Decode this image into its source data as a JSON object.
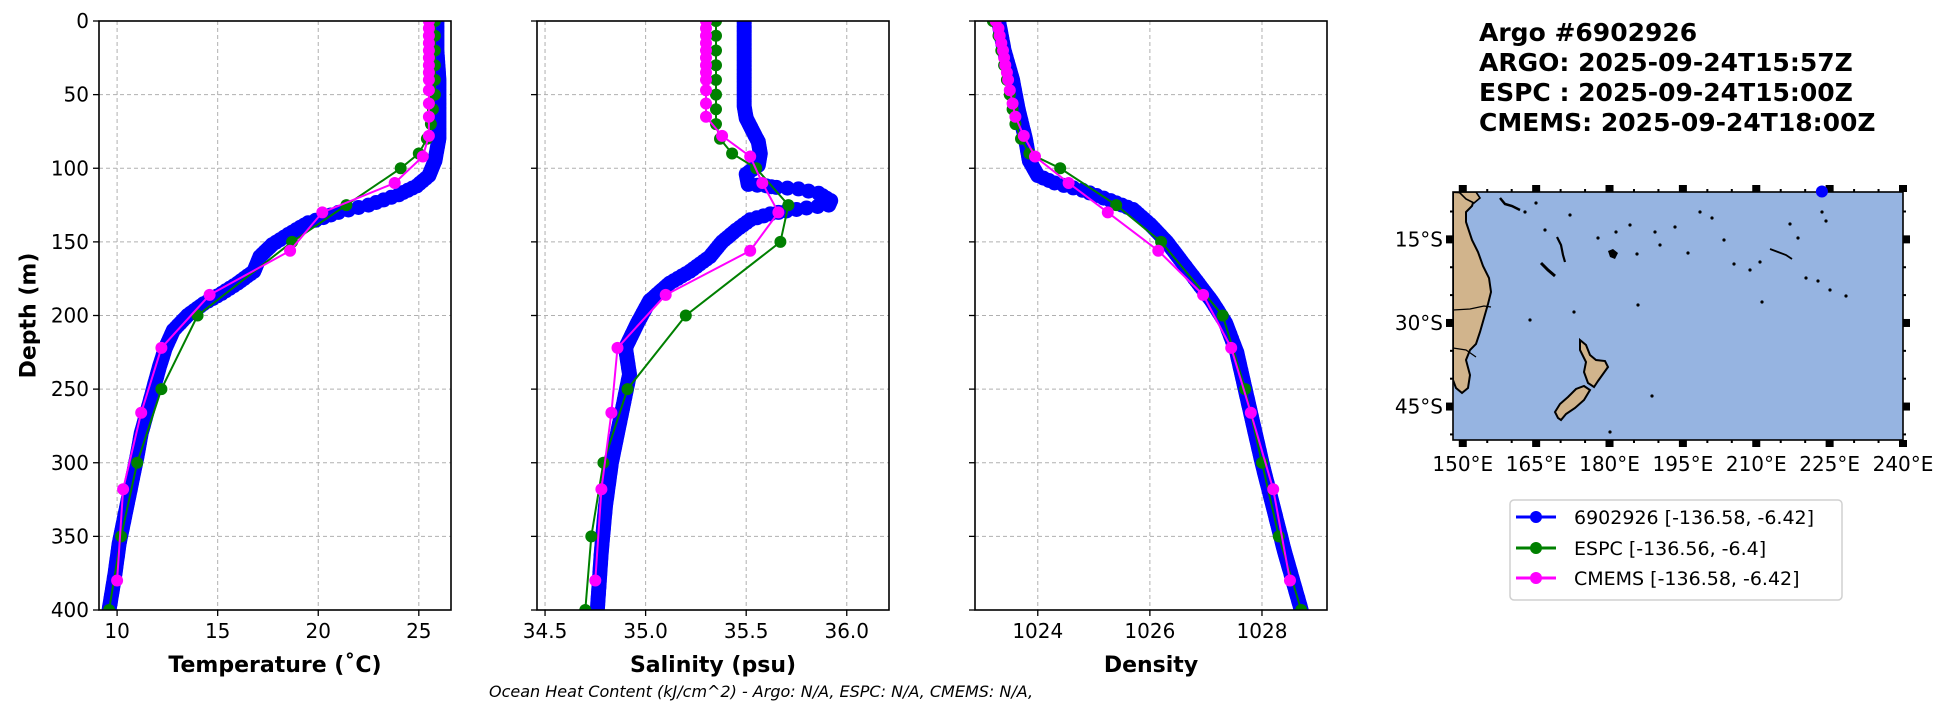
{
  "chart_data": [
    {
      "type": "line",
      "panel": "temperature",
      "xlabel": "Temperature (˚C)",
      "ylabel": "Depth (m)",
      "xlim": [
        9.1,
        26.6
      ],
      "ylim": [
        400,
        0
      ],
      "xticks": [
        10,
        15,
        20,
        25
      ],
      "yticks": [
        0,
        50,
        100,
        150,
        200,
        250,
        300,
        350,
        400
      ],
      "grid": true,
      "series": [
        {
          "name": "6902926",
          "color": "#0000ff",
          "dense": true,
          "points": [
            [
              25.9,
              0
            ],
            [
              25.9,
              20
            ],
            [
              26.0,
              40
            ],
            [
              26.0,
              60
            ],
            [
              26.0,
              80
            ],
            [
              25.8,
              95
            ],
            [
              25.5,
              105
            ],
            [
              24.9,
              112
            ],
            [
              24.0,
              118
            ],
            [
              22.5,
              125
            ],
            [
              21.0,
              130
            ],
            [
              19.5,
              137
            ],
            [
              18.5,
              145
            ],
            [
              17.7,
              152
            ],
            [
              17.1,
              160
            ],
            [
              16.8,
              170
            ],
            [
              16.0,
              178
            ],
            [
              15.2,
              185
            ],
            [
              14.3,
              192
            ],
            [
              13.5,
              200
            ],
            [
              12.8,
              210
            ],
            [
              12.4,
              222
            ],
            [
              12.1,
              235
            ],
            [
              11.8,
              250
            ],
            [
              11.5,
              265
            ],
            [
              11.2,
              280
            ],
            [
              11.0,
              295
            ],
            [
              10.7,
              315
            ],
            [
              10.4,
              335
            ],
            [
              10.1,
              355
            ],
            [
              9.9,
              375
            ],
            [
              9.6,
              400
            ]
          ]
        },
        {
          "name": "ESPC",
          "color": "#008000",
          "dense": false,
          "points": [
            [
              25.8,
              0
            ],
            [
              25.8,
              10
            ],
            [
              25.8,
              20
            ],
            [
              25.8,
              30
            ],
            [
              25.8,
              40
            ],
            [
              25.8,
              50
            ],
            [
              25.7,
              60
            ],
            [
              25.6,
              70
            ],
            [
              25.4,
              80
            ],
            [
              25.0,
              90
            ],
            [
              24.1,
              100
            ],
            [
              21.4,
              125
            ],
            [
              18.7,
              150
            ],
            [
              14.0,
              200
            ],
            [
              12.2,
              250
            ],
            [
              11.0,
              300
            ],
            [
              10.2,
              350
            ],
            [
              9.6,
              400
            ]
          ]
        },
        {
          "name": "CMEMS",
          "color": "#ff00ff",
          "dense": false,
          "points": [
            [
              25.5,
              0
            ],
            [
              25.5,
              5
            ],
            [
              25.5,
              10
            ],
            [
              25.5,
              15
            ],
            [
              25.5,
              20
            ],
            [
              25.5,
              25
            ],
            [
              25.5,
              30
            ],
            [
              25.5,
              35
            ],
            [
              25.5,
              40
            ],
            [
              25.5,
              47
            ],
            [
              25.5,
              56
            ],
            [
              25.5,
              65
            ],
            [
              25.5,
              78
            ],
            [
              25.2,
              92
            ],
            [
              23.8,
              110
            ],
            [
              20.2,
              130
            ],
            [
              18.6,
              156
            ],
            [
              14.6,
              186
            ],
            [
              12.2,
              222
            ],
            [
              11.2,
              266
            ],
            [
              10.3,
              318
            ],
            [
              10.0,
              380
            ]
          ]
        }
      ]
    },
    {
      "type": "line",
      "panel": "salinity",
      "xlabel": "Salinity (psu)",
      "ylabel": "",
      "xlim": [
        34.46,
        36.21
      ],
      "ylim": [
        400,
        0
      ],
      "xticks": [
        "34.5",
        "35.0",
        "35.5",
        "36.0"
      ],
      "xtick_values": [
        34.5,
        35.0,
        35.5,
        36.0
      ],
      "yticks": [
        0,
        50,
        100,
        150,
        200,
        250,
        300,
        350,
        400
      ],
      "grid": true,
      "series": [
        {
          "name": "6902926",
          "color": "#0000ff",
          "dense": true,
          "points": [
            [
              35.49,
              0
            ],
            [
              35.49,
              20
            ],
            [
              35.49,
              40
            ],
            [
              35.49,
              58
            ],
            [
              35.5,
              66
            ],
            [
              35.53,
              74
            ],
            [
              35.56,
              82
            ],
            [
              35.57,
              90
            ],
            [
              35.56,
              98
            ],
            [
              35.5,
              104
            ],
            [
              35.51,
              111
            ],
            [
              35.6,
              112
            ],
            [
              35.65,
              113
            ],
            [
              35.76,
              114
            ],
            [
              35.86,
              117
            ],
            [
              35.92,
              122
            ],
            [
              35.91,
              125
            ],
            [
              35.8,
              127
            ],
            [
              35.7,
              129
            ],
            [
              35.62,
              131
            ],
            [
              35.52,
              135
            ],
            [
              35.45,
              142
            ],
            [
              35.38,
              150
            ],
            [
              35.32,
              160
            ],
            [
              35.22,
              170
            ],
            [
              35.12,
              178
            ],
            [
              35.02,
              190
            ],
            [
              34.96,
              205
            ],
            [
              34.9,
              222
            ],
            [
              34.92,
              240
            ],
            [
              34.89,
              260
            ],
            [
              34.86,
              280
            ],
            [
              34.83,
              300
            ],
            [
              34.8,
              330
            ],
            [
              34.78,
              360
            ],
            [
              34.76,
              400
            ]
          ]
        },
        {
          "name": "ESPC",
          "color": "#008000",
          "dense": false,
          "points": [
            [
              35.35,
              0
            ],
            [
              35.35,
              10
            ],
            [
              35.35,
              20
            ],
            [
              35.35,
              30
            ],
            [
              35.35,
              40
            ],
            [
              35.35,
              50
            ],
            [
              35.35,
              60
            ],
            [
              35.35,
              70
            ],
            [
              35.37,
              80
            ],
            [
              35.43,
              90
            ],
            [
              35.55,
              100
            ],
            [
              35.71,
              125
            ],
            [
              35.67,
              150
            ],
            [
              35.2,
              200
            ],
            [
              34.91,
              250
            ],
            [
              34.79,
              300
            ],
            [
              34.73,
              350
            ],
            [
              34.7,
              400
            ]
          ]
        },
        {
          "name": "CMEMS",
          "color": "#ff00ff",
          "dense": false,
          "points": [
            [
              35.3,
              0
            ],
            [
              35.3,
              5
            ],
            [
              35.3,
              10
            ],
            [
              35.3,
              15
            ],
            [
              35.3,
              20
            ],
            [
              35.3,
              25
            ],
            [
              35.3,
              30
            ],
            [
              35.3,
              35
            ],
            [
              35.3,
              40
            ],
            [
              35.3,
              47
            ],
            [
              35.3,
              56
            ],
            [
              35.3,
              65
            ],
            [
              35.38,
              78
            ],
            [
              35.52,
              92
            ],
            [
              35.58,
              110
            ],
            [
              35.66,
              130
            ],
            [
              35.52,
              156
            ],
            [
              35.1,
              186
            ],
            [
              34.86,
              222
            ],
            [
              34.83,
              266
            ],
            [
              34.78,
              318
            ],
            [
              34.75,
              380
            ]
          ]
        }
      ]
    },
    {
      "type": "line",
      "panel": "density",
      "xlabel": "Density",
      "ylabel": "",
      "xlim": [
        1022.88,
        1029.16
      ],
      "ylim": [
        400,
        0
      ],
      "xticks": [
        1024,
        1026,
        1028
      ],
      "yticks": [
        0,
        50,
        100,
        150,
        200,
        250,
        300,
        350,
        400
      ],
      "grid": true,
      "series": [
        {
          "name": "6902926",
          "color": "#0000ff",
          "dense": true,
          "points": [
            [
              1023.3,
              0
            ],
            [
              1023.4,
              20
            ],
            [
              1023.55,
              40
            ],
            [
              1023.65,
              60
            ],
            [
              1023.78,
              80
            ],
            [
              1023.85,
              95
            ],
            [
              1024.0,
              105
            ],
            [
              1024.3,
              110
            ],
            [
              1024.8,
              115
            ],
            [
              1025.3,
              122
            ],
            [
              1025.7,
              128
            ],
            [
              1026.0,
              138
            ],
            [
              1026.3,
              150
            ],
            [
              1026.5,
              160
            ],
            [
              1026.8,
              175
            ],
            [
              1027.1,
              190
            ],
            [
              1027.35,
              205
            ],
            [
              1027.55,
              225
            ],
            [
              1027.7,
              250
            ],
            [
              1027.85,
              275
            ],
            [
              1028.0,
              300
            ],
            [
              1028.2,
              330
            ],
            [
              1028.4,
              360
            ],
            [
              1028.7,
              400
            ]
          ]
        },
        {
          "name": "ESPC",
          "color": "#008000",
          "dense": false,
          "points": [
            [
              1023.2,
              0
            ],
            [
              1023.3,
              10
            ],
            [
              1023.35,
              20
            ],
            [
              1023.4,
              30
            ],
            [
              1023.45,
              40
            ],
            [
              1023.5,
              50
            ],
            [
              1023.55,
              60
            ],
            [
              1023.6,
              70
            ],
            [
              1023.7,
              80
            ],
            [
              1023.85,
              90
            ],
            [
              1024.4,
              100
            ],
            [
              1025.4,
              125
            ],
            [
              1026.2,
              150
            ],
            [
              1027.3,
              200
            ],
            [
              1027.7,
              250
            ],
            [
              1028.0,
              300
            ],
            [
              1028.3,
              350
            ],
            [
              1028.7,
              400
            ]
          ]
        },
        {
          "name": "CMEMS",
          "color": "#ff00ff",
          "dense": false,
          "points": [
            [
              1023.25,
              0
            ],
            [
              1023.3,
              5
            ],
            [
              1023.32,
              10
            ],
            [
              1023.35,
              15
            ],
            [
              1023.38,
              20
            ],
            [
              1023.4,
              25
            ],
            [
              1023.42,
              30
            ],
            [
              1023.45,
              35
            ],
            [
              1023.47,
              40
            ],
            [
              1023.5,
              47
            ],
            [
              1023.55,
              56
            ],
            [
              1023.6,
              65
            ],
            [
              1023.75,
              78
            ],
            [
              1023.95,
              92
            ],
            [
              1024.55,
              110
            ],
            [
              1025.25,
              130
            ],
            [
              1026.15,
              156
            ],
            [
              1026.95,
              186
            ],
            [
              1027.45,
              222
            ],
            [
              1027.8,
              266
            ],
            [
              1028.2,
              318
            ],
            [
              1028.5,
              380
            ]
          ]
        }
      ]
    }
  ],
  "info": {
    "lines": [
      "Argo #6902926",
      "ARGO: 2025-09-24T15:57Z",
      "ESPC : 2025-09-24T15:00Z",
      "CMEMS: 2025-09-24T18:00Z"
    ]
  },
  "map": {
    "lon_range": [
      148,
      240
    ],
    "lat_range": [
      -51,
      -6.5
    ],
    "xtick_labels": [
      "150°E",
      "165°E",
      "180°E",
      "195°E",
      "210°E",
      "225°E",
      "240°E"
    ],
    "xtick_values": [
      150,
      165,
      180,
      195,
      210,
      225,
      240
    ],
    "ytick_labels": [
      "15°S",
      "30°S",
      "45°S"
    ],
    "ytick_values": [
      -15,
      -30,
      -45
    ],
    "ocean_color": "#96b4e1",
    "land_color": "#d1b48c",
    "float_position": {
      "lon": 223.42,
      "lat": -6.42,
      "color": "#0000ff"
    }
  },
  "legend": {
    "entries": [
      {
        "label": "6902926 [-136.58, -6.42]",
        "color": "#0000ff"
      },
      {
        "label": "ESPC [-136.56, -6.4]",
        "color": "#008000"
      },
      {
        "label": "CMEMS [-136.58, -6.42]",
        "color": "#ff00ff"
      }
    ]
  },
  "footnote": "Ocean Heat Content (kJ/cm^2) - Argo: N/A,  ESPC: N/A,  CMEMS: N/A,"
}
